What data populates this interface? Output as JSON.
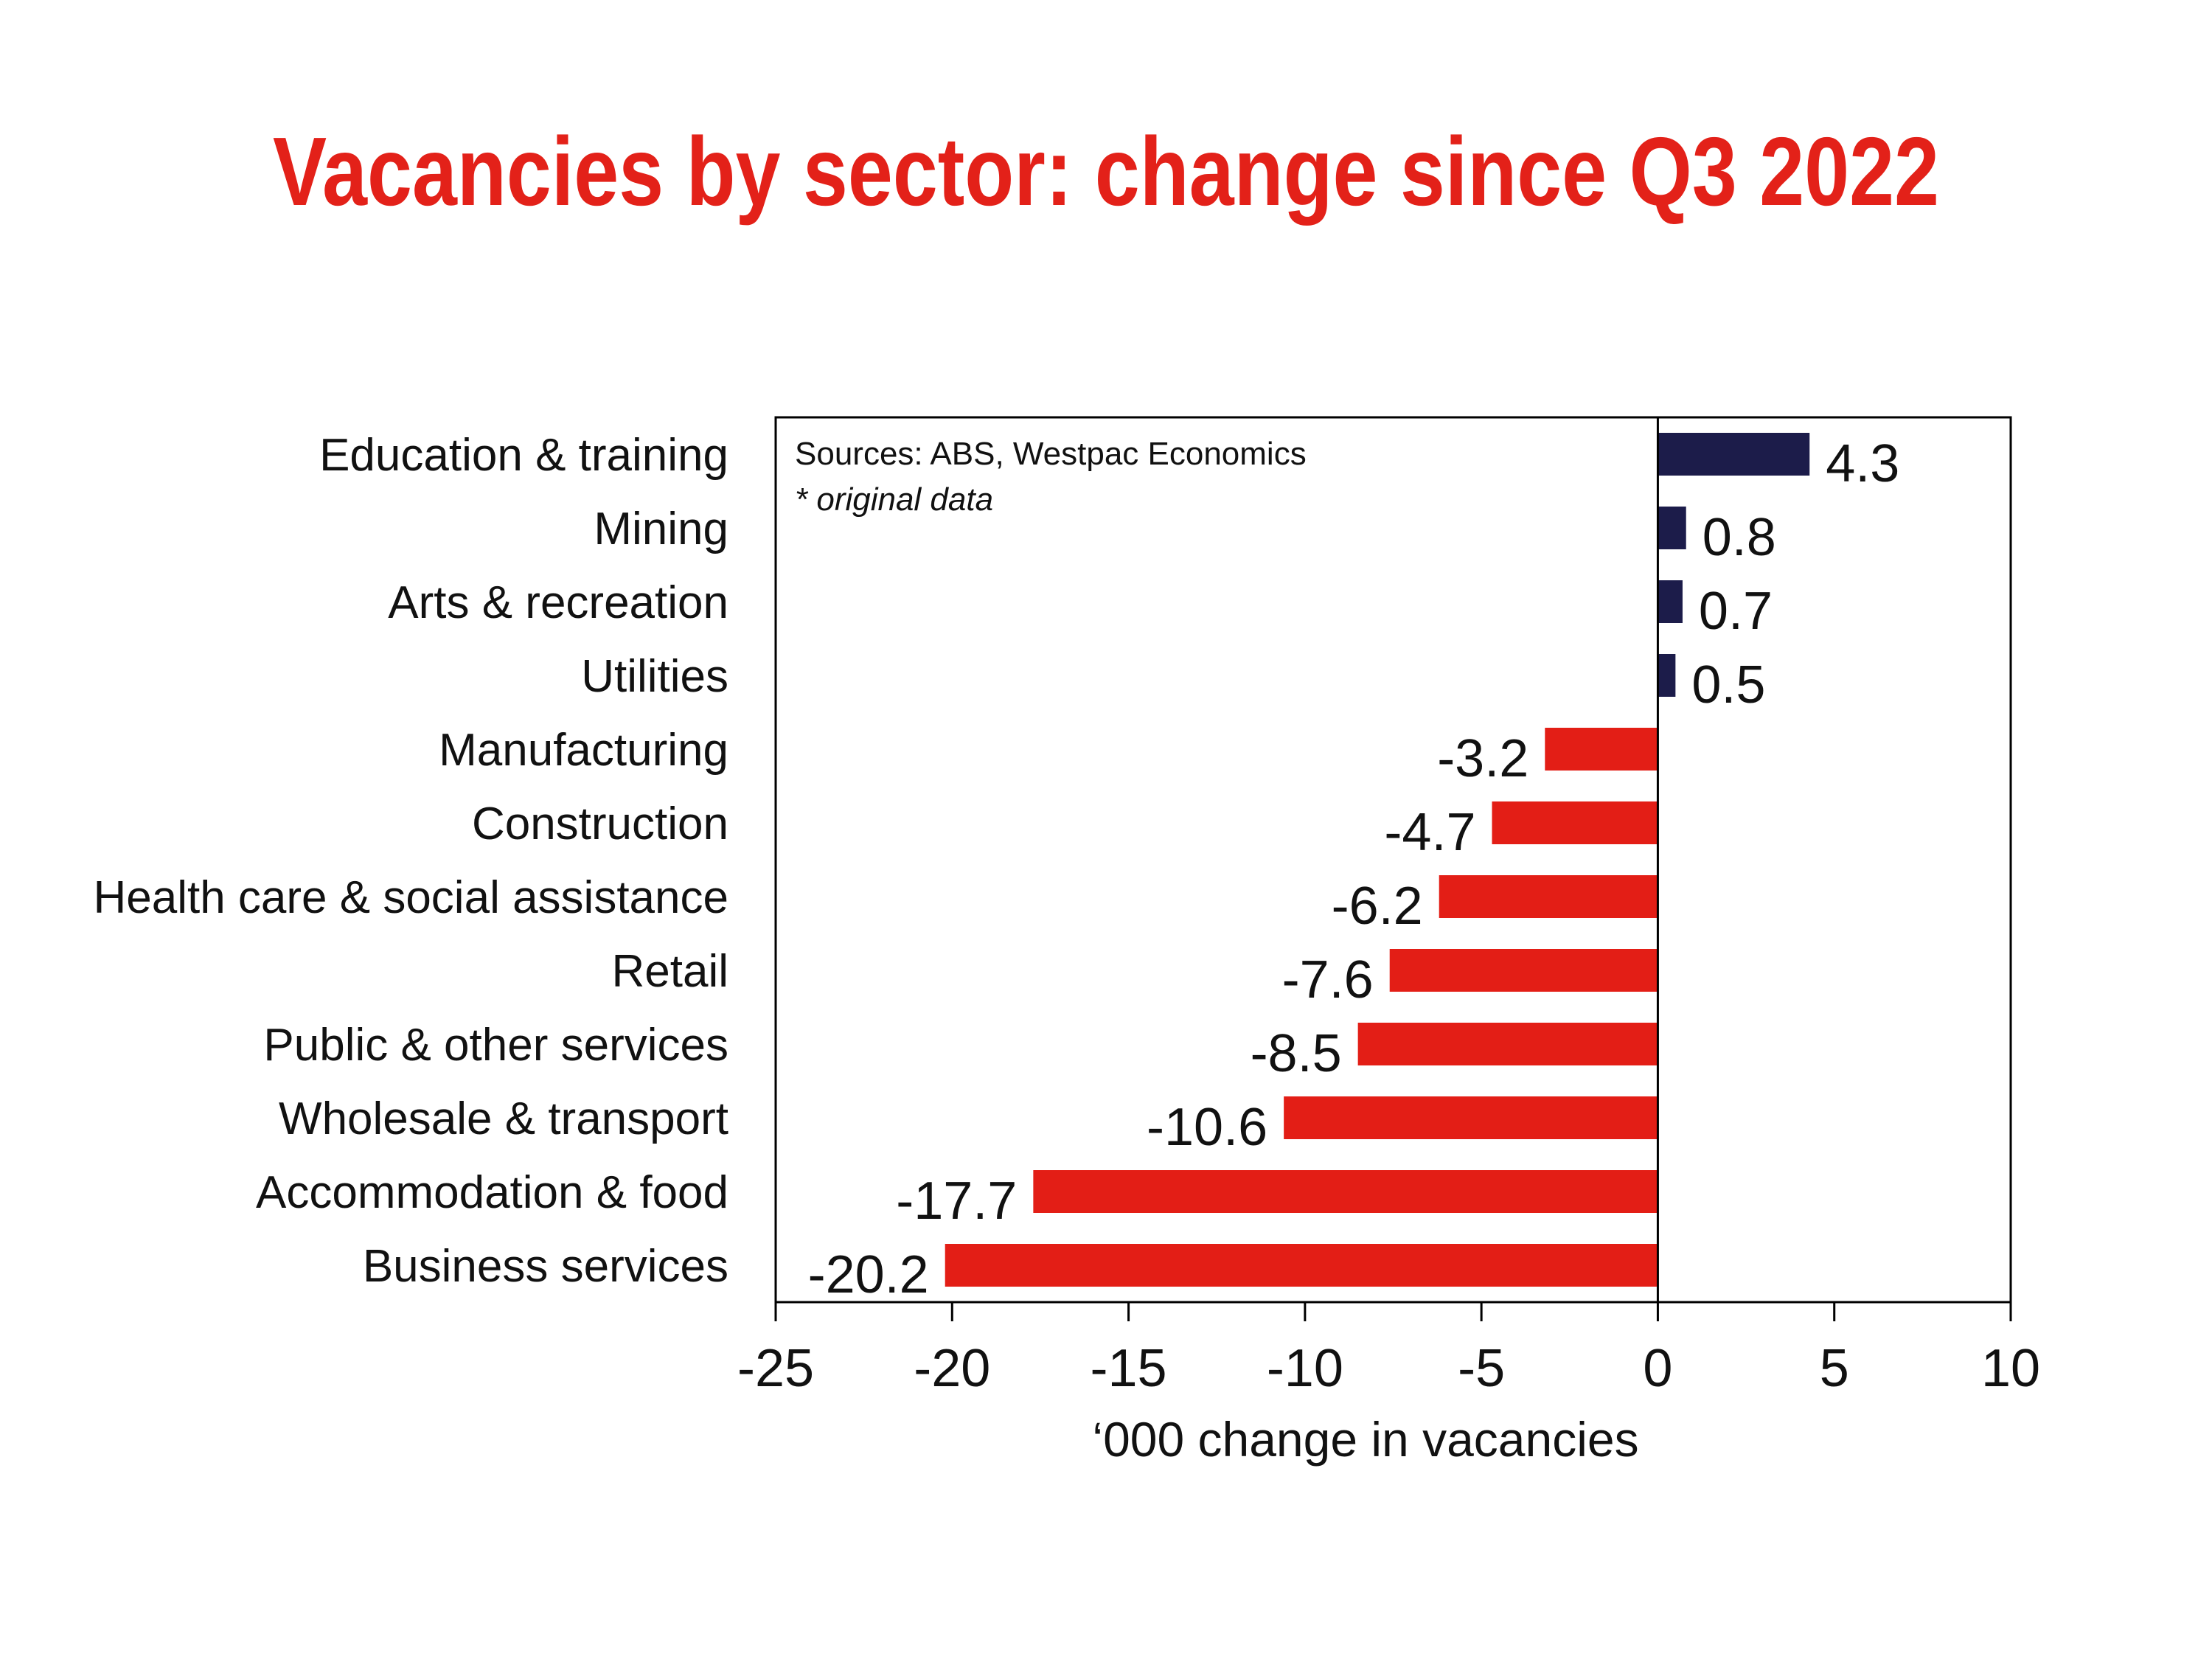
{
  "colors": {
    "title": "#e32119",
    "positive": "#1c1c4a",
    "negative": "#e31e16",
    "axis": "#000000",
    "text": "#111111"
  },
  "chart_data": {
    "type": "bar",
    "orientation": "horizontal",
    "title": "Vacancies by sector: change since Q3 2022",
    "xlabel": "‘000 change in vacancies",
    "ylabel": "",
    "xlim": [
      -25,
      10
    ],
    "xticks": [
      -25,
      -20,
      -15,
      -10,
      -5,
      0,
      5,
      10
    ],
    "xtick_labels": [
      "-25",
      "-20",
      "-15",
      "-10",
      "-5",
      "0",
      "5",
      "10"
    ],
    "grid": false,
    "legend": "none",
    "categories": [
      "Education & training",
      "Mining",
      "Arts & recreation",
      "Utilities",
      "Manufacturing",
      "Construction",
      "Health care & social assistance",
      "Retail",
      "Public & other services",
      "Wholesale & transport",
      "Accommodation & food",
      "Business services"
    ],
    "values": [
      4.3,
      0.8,
      0.7,
      0.5,
      -3.2,
      -4.7,
      -6.2,
      -7.6,
      -8.5,
      -10.6,
      -17.7,
      -20.2
    ],
    "data_labels": [
      "4.3",
      "0.8",
      "0.7",
      "0.5",
      "-3.2",
      "-4.7",
      "-6.2",
      "-7.6",
      "-8.5",
      "-10.6",
      "-17.7",
      "-20.2"
    ],
    "annotations": {
      "source": "Sources: ABS, Westpac Economics",
      "note": "* original data"
    }
  }
}
